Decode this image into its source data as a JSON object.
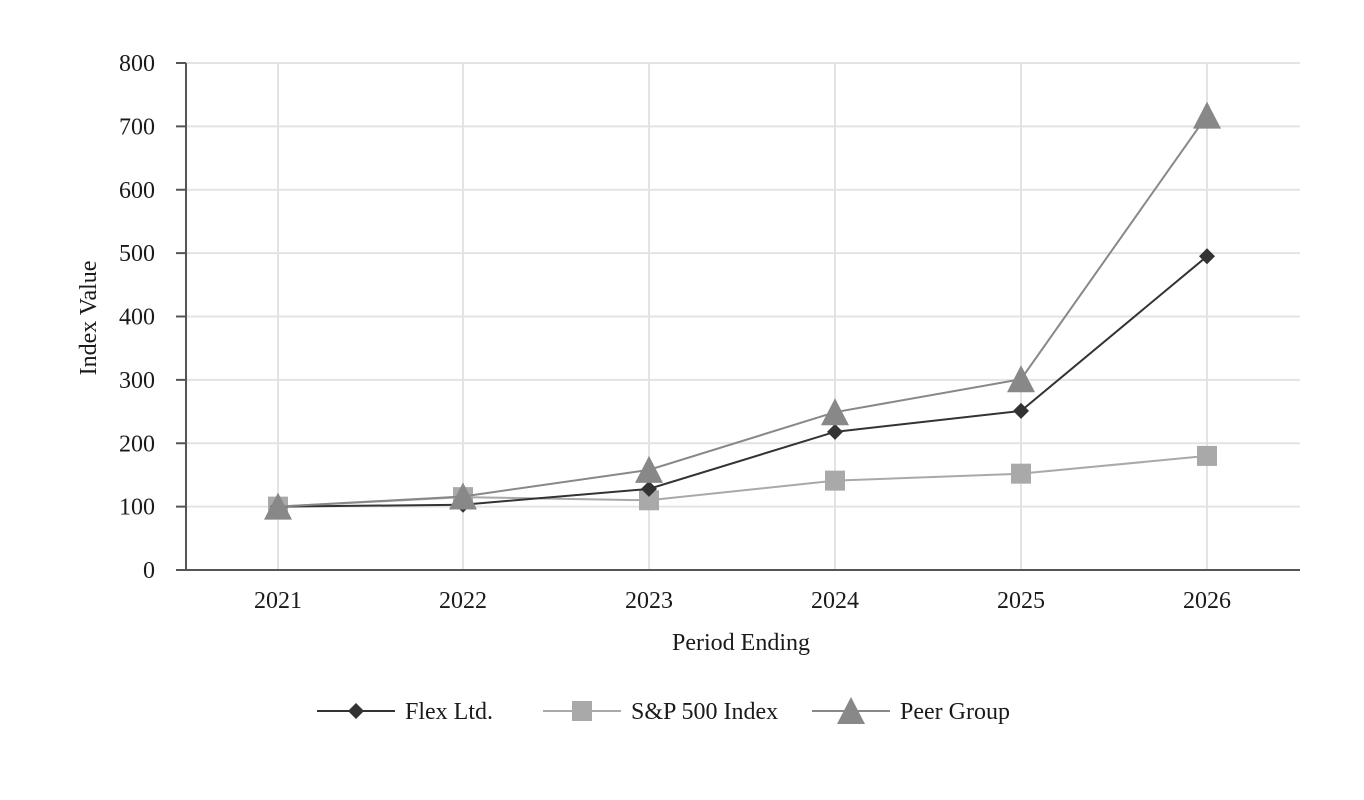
{
  "chart_data": {
    "type": "line",
    "title": "",
    "xlabel": "Period Ending",
    "ylabel": "Index Value",
    "categories": [
      "2021",
      "2022",
      "2023",
      "2024",
      "2025",
      "2026"
    ],
    "ylim": [
      0,
      800
    ],
    "yticks": [
      "0",
      "100",
      "200",
      "300",
      "400",
      "500",
      "600",
      "700",
      "800"
    ],
    "grid": true,
    "legend_position": "bottom",
    "series": [
      {
        "name": "Flex Ltd.",
        "values": [
          100,
          103,
          128,
          218,
          251,
          495
        ],
        "color": "#333333",
        "marker": "diamond"
      },
      {
        "name": "S&P 500 Index",
        "values": [
          100,
          115,
          110,
          141,
          152,
          180
        ],
        "color": "#a9a9a9",
        "marker": "square"
      },
      {
        "name": "Peer Group",
        "values": [
          100,
          116,
          158,
          249,
          301,
          717
        ],
        "color": "#888888",
        "marker": "triangle"
      }
    ]
  }
}
